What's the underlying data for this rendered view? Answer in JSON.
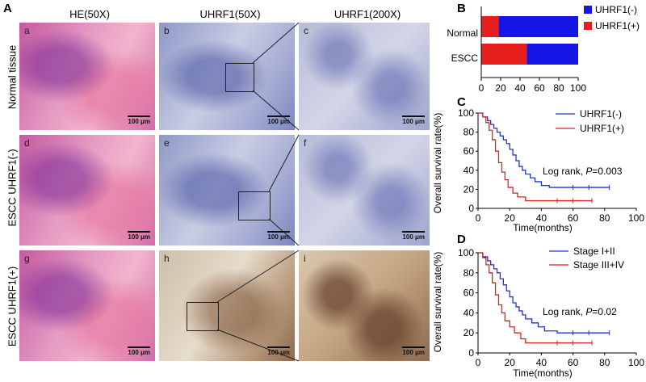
{
  "panelA": {
    "letter": "A",
    "col_headers": [
      "HE(50X)",
      "UHRF1(50X)",
      "UHRF1(200X)"
    ],
    "row_labels": [
      "Normal tissue",
      "ESCC UHRF1(-)",
      "ESCC UHRF1(+)"
    ],
    "tile_letters": [
      "a",
      "b",
      "c",
      "d",
      "e",
      "f",
      "g",
      "h",
      "i"
    ],
    "scale_label": "100 μm"
  },
  "panelB": {
    "letter": "B",
    "legend": [
      "UHRF1(-)",
      "UHRF1(+)"
    ],
    "colors": {
      "negative": "#1515e6",
      "positive": "#e61e1e"
    },
    "chart_data": {
      "type": "bar",
      "orientation": "horizontal",
      "stacked": true,
      "categories": [
        "Normal",
        "ESCC"
      ],
      "series": [
        {
          "name": "UHRF1(+)",
          "values": [
            18,
            47
          ]
        },
        {
          "name": "UHRF1(-)",
          "values": [
            82,
            53
          ]
        }
      ],
      "xlim": [
        0,
        100
      ],
      "xticks": [
        "0",
        "20",
        "40",
        "60",
        "80",
        "100"
      ]
    }
  },
  "panelC": {
    "letter": "C",
    "ylabel": "Overall survival rate(%)",
    "xlabel": "Time(months)",
    "legend": [
      "UHRF1(-)",
      "UHRF1(+)"
    ],
    "stat_prefix": "Log rank, ",
    "stat_p": "P",
    "stat_value": "=0.003",
    "colors": {
      "s1": "#2233cc",
      "s2": "#dd2222"
    },
    "chart_data": {
      "type": "line",
      "step": true,
      "xlim": [
        0,
        100
      ],
      "ylim": [
        0,
        100
      ],
      "xticks": [
        "0",
        "20",
        "40",
        "60",
        "80",
        "100"
      ],
      "yticks": [
        "0",
        "20",
        "40",
        "60",
        "80",
        "100"
      ],
      "series": [
        {
          "name": "UHRF1(-)",
          "x": [
            0,
            3,
            6,
            8,
            10,
            12,
            14,
            16,
            18,
            20,
            22,
            24,
            26,
            28,
            30,
            33,
            36,
            40,
            45,
            50,
            60,
            70,
            83
          ],
          "y": [
            100,
            96,
            92,
            88,
            84,
            80,
            76,
            72,
            68,
            62,
            56,
            50,
            44,
            40,
            36,
            32,
            28,
            24,
            22,
            22,
            22,
            22,
            22
          ]
        },
        {
          "name": "UHRF1(+)",
          "x": [
            0,
            3,
            5,
            7,
            9,
            11,
            13,
            15,
            17,
            19,
            22,
            25,
            30,
            40,
            50,
            60,
            72
          ],
          "y": [
            100,
            96,
            90,
            82,
            72,
            60,
            48,
            38,
            30,
            22,
            16,
            12,
            8,
            8,
            8,
            8,
            8
          ]
        }
      ]
    }
  },
  "panelD": {
    "letter": "D",
    "ylabel": "Overall survival rate(%)",
    "xlabel": "Time(months)",
    "legend": [
      "Stage I+II",
      "Stage III+IV"
    ],
    "stat_prefix": "Log rank, ",
    "stat_p": "P",
    "stat_value": "=0.02",
    "colors": {
      "s1": "#2233cc",
      "s2": "#dd2222"
    },
    "chart_data": {
      "type": "line",
      "step": true,
      "xlim": [
        0,
        100
      ],
      "ylim": [
        0,
        100
      ],
      "xticks": [
        "0",
        "20",
        "40",
        "60",
        "80",
        "100"
      ],
      "yticks": [
        "0",
        "20",
        "40",
        "60",
        "80",
        "100"
      ],
      "series": [
        {
          "name": "Stage I+II",
          "x": [
            0,
            3,
            6,
            8,
            10,
            12,
            14,
            16,
            18,
            20,
            22,
            24,
            26,
            28,
            30,
            34,
            38,
            42,
            50,
            60,
            70,
            83
          ],
          "y": [
            100,
            96,
            92,
            88,
            84,
            80,
            74,
            68,
            62,
            56,
            50,
            46,
            42,
            38,
            34,
            30,
            26,
            22,
            20,
            20,
            20,
            20
          ]
        },
        {
          "name": "Stage III+IV",
          "x": [
            0,
            3,
            5,
            7,
            9,
            11,
            13,
            15,
            17,
            20,
            23,
            27,
            30,
            40,
            50,
            60,
            72
          ],
          "y": [
            100,
            95,
            88,
            80,
            70,
            58,
            48,
            40,
            32,
            26,
            20,
            14,
            10,
            10,
            10,
            10,
            10
          ]
        }
      ]
    }
  }
}
